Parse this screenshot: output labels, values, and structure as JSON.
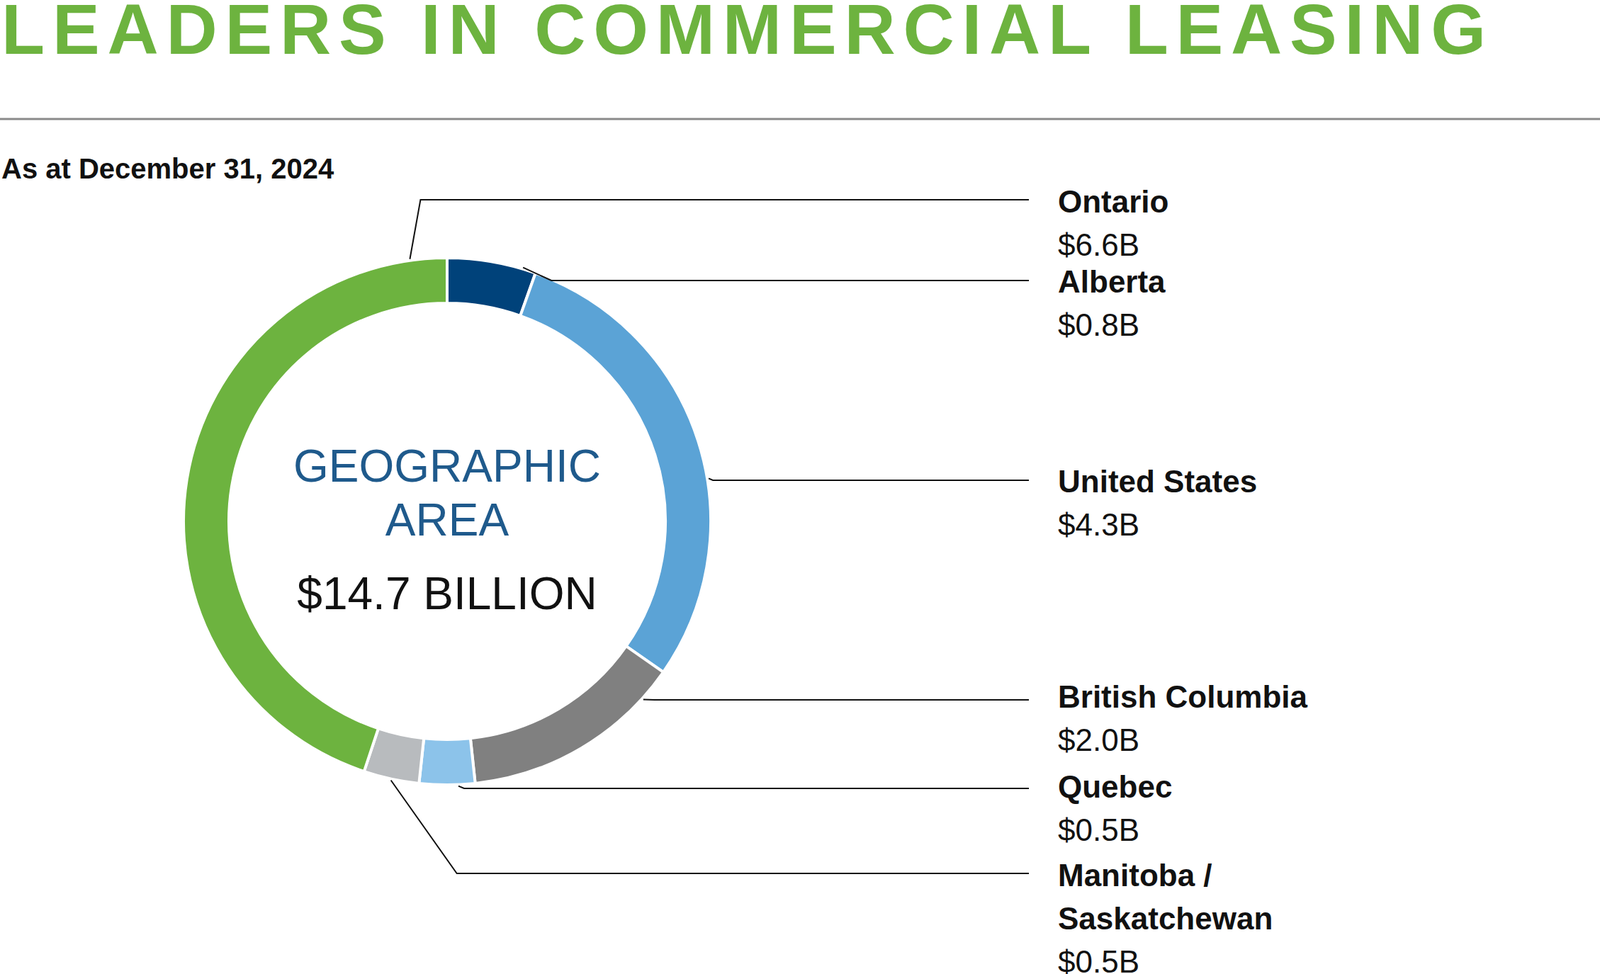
{
  "chart_data": {
    "type": "donut",
    "title": "LEADERS IN COMMERCIAL LEASING",
    "subtitle": "As at December 31, 2024",
    "center_title": "GEOGRAPHIC AREA",
    "total": 14.7,
    "total_label": "$14.7 BILLION",
    "categories": [
      "Alberta",
      "United States",
      "British Columbia",
      "Quebec",
      "Manitoba / Saskatchewan",
      "Ontario"
    ],
    "values": [
      0.8,
      4.3,
      2.0,
      0.5,
      0.5,
      6.6
    ],
    "value_labels": [
      "$0.8B",
      "$4.3B",
      "$2.0B",
      "$0.5B",
      "$0.5B",
      "$6.6B"
    ],
    "colors": [
      "#00427a",
      "#5ba3d6",
      "#808080",
      "#8cc3ea",
      "#b8bbbe",
      "#6db33f"
    ],
    "data_labels": true
  }
}
